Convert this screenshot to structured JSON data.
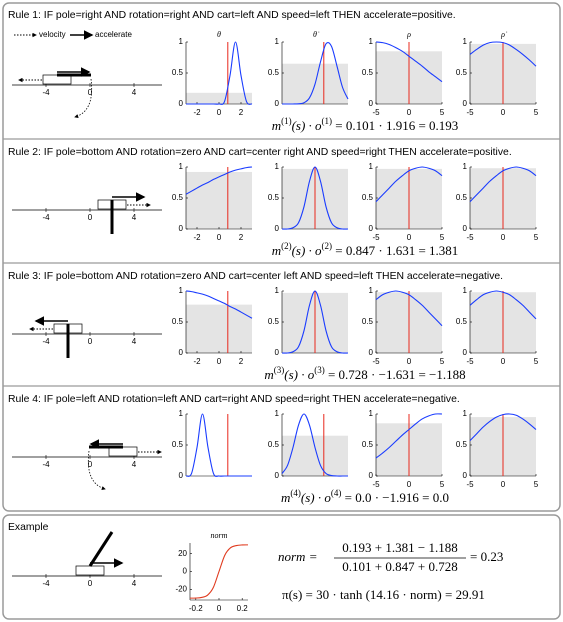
{
  "legend": {
    "velocity": "velocity",
    "accelerate": "accelerate"
  },
  "plot_labels": [
    "θ",
    "θ̇",
    "ρ",
    "ρ̇"
  ],
  "cart_ticks": [
    -4,
    0,
    4
  ],
  "rules": [
    {
      "title": "Rule 1: IF pole=right AND rotation=right AND cart=left AND speed=left THEN accelerate=positive.",
      "formula": [
        "m",
        "(1)",
        "(s) · o",
        "(1)",
        " = 0.101 · 1.916 = 0.193"
      ],
      "plots": [
        {
          "xlim": [
            -3,
            3
          ],
          "xticks": [
            -2,
            0,
            2
          ],
          "ylim": [
            0,
            1
          ],
          "yticks": [
            0,
            0.5,
            1
          ],
          "membership": 0.18,
          "state": 0.8,
          "x": [
            -3,
            -2.5,
            -2,
            -1.5,
            -1,
            -0.5,
            0,
            0.5,
            1,
            1.5,
            2,
            2.5,
            3
          ],
          "y": [
            0,
            0,
            0,
            0,
            0,
            0,
            0,
            0.04,
            0.46,
            1,
            0.46,
            0.04,
            0
          ]
        },
        {
          "xlim": [
            -3,
            3
          ],
          "ylim": [
            0,
            1
          ],
          "yticks": [
            0,
            0.5,
            1
          ],
          "membership": 0.65,
          "state": 0.8,
          "x": [
            -3,
            -2.5,
            -2,
            -1.5,
            -1,
            -0.5,
            0,
            0.5,
            1,
            1.5,
            2,
            2.5,
            3
          ],
          "y": [
            0,
            0,
            0,
            0.003,
            0.02,
            0.1,
            0.32,
            0.68,
            0.97,
            0.93,
            0.61,
            0.27,
            0.08
          ]
        },
        {
          "xlim": [
            -5,
            5
          ],
          "xticks": [
            -5,
            0,
            5
          ],
          "ylim": [
            0,
            1
          ],
          "yticks": [
            0,
            0.5,
            1
          ],
          "membership": 0.85,
          "state": 0,
          "x": [
            -5,
            -4,
            -3,
            -2,
            -1,
            0,
            1,
            2,
            3,
            4,
            5
          ],
          "y": [
            1,
            0.99,
            0.96,
            0.91,
            0.85,
            0.77,
            0.69,
            0.61,
            0.52,
            0.44,
            0.36
          ]
        },
        {
          "xlim": [
            -5,
            5
          ],
          "xticks": [
            -5,
            0,
            5
          ],
          "ylim": [
            0,
            1
          ],
          "yticks": [
            0,
            0.5,
            1
          ],
          "membership": 0.97,
          "state": 0,
          "x": [
            -5,
            -4,
            -3,
            -2,
            -1,
            0,
            1,
            2,
            3,
            4,
            5
          ],
          "y": [
            0.8,
            0.88,
            0.95,
            0.99,
            1,
            0.99,
            0.95,
            0.88,
            0.8,
            0.71,
            0.61
          ]
        }
      ]
    },
    {
      "title": "Rule 2: IF pole=bottom AND rotation=zero AND cart=center right AND speed=right THEN accelerate=positive.",
      "formula": [
        "m",
        "(2)",
        "(s) · o",
        "(2)",
        " = 0.847 · 1.631 = 1.381"
      ],
      "plots": [
        {
          "xlim": [
            -3,
            3
          ],
          "xticks": [
            -2,
            0,
            2
          ],
          "ylim": [
            0,
            1
          ],
          "yticks": [
            0,
            0.5,
            1
          ],
          "membership": 0.92,
          "state": 0.8,
          "x": [
            -3,
            -2.5,
            -2,
            -1.5,
            -1,
            -0.5,
            0,
            0.5,
            1,
            1.5,
            2,
            2.5,
            3
          ],
          "y": [
            0.56,
            0.61,
            0.66,
            0.71,
            0.75,
            0.8,
            0.84,
            0.88,
            0.92,
            0.95,
            0.97,
            0.99,
            1
          ]
        },
        {
          "xlim": [
            -3,
            3
          ],
          "ylim": [
            0,
            1
          ],
          "yticks": [
            0,
            0.5,
            1
          ],
          "membership": 0.97,
          "state": 0,
          "x": [
            -3,
            -2.5,
            -2,
            -1.5,
            -1,
            -0.5,
            0,
            0.5,
            1,
            1.5,
            2,
            2.5,
            3
          ],
          "y": [
            0,
            0,
            0.02,
            0.1,
            0.36,
            0.77,
            1,
            0.77,
            0.36,
            0.1,
            0.02,
            0,
            0
          ]
        },
        {
          "xlim": [
            -5,
            5
          ],
          "xticks": [
            -5,
            0,
            5
          ],
          "ylim": [
            0,
            1
          ],
          "yticks": [
            0,
            0.5,
            1
          ],
          "membership": 0.97,
          "state": 0,
          "x": [
            -5,
            -4,
            -3,
            -2,
            -1,
            0,
            1,
            2,
            3,
            4,
            5
          ],
          "y": [
            0.44,
            0.55,
            0.66,
            0.77,
            0.86,
            0.94,
            0.98,
            1,
            0.98,
            0.94,
            0.86
          ]
        },
        {
          "xlim": [
            -5,
            5
          ],
          "xticks": [
            -5,
            0,
            5
          ],
          "ylim": [
            0,
            1
          ],
          "yticks": [
            0,
            0.5,
            1
          ],
          "membership": 0.98,
          "state": 0,
          "x": [
            -5,
            -4,
            -3,
            -2,
            -1,
            0,
            1,
            2,
            3,
            4,
            5
          ],
          "y": [
            0.44,
            0.55,
            0.66,
            0.77,
            0.86,
            0.94,
            0.98,
            1,
            0.98,
            0.94,
            0.86
          ]
        }
      ]
    },
    {
      "title": "Rule 3: IF pole=bottom AND rotation=zero AND cart=center left AND speed=left THEN accelerate=negative.",
      "formula": [
        "m",
        "(3)",
        "(s) · o",
        "(3)",
        " = 0.728 · −1.631 = −1.188"
      ],
      "plots": [
        {
          "xlim": [
            -3,
            3
          ],
          "xticks": [
            -2,
            0,
            2
          ],
          "ylim": [
            0,
            1
          ],
          "yticks": [
            0,
            0.5,
            1
          ],
          "membership": 0.78,
          "state": 0.8,
          "x": [
            -3,
            -2.5,
            -2,
            -1.5,
            -1,
            -0.5,
            0,
            0.5,
            1,
            1.5,
            2,
            2.5,
            3
          ],
          "y": [
            1,
            0.99,
            0.97,
            0.95,
            0.92,
            0.88,
            0.84,
            0.8,
            0.75,
            0.71,
            0.66,
            0.61,
            0.56
          ]
        },
        {
          "xlim": [
            -3,
            3
          ],
          "ylim": [
            0,
            1
          ],
          "yticks": [
            0,
            0.5,
            1
          ],
          "membership": 0.97,
          "state": 0,
          "x": [
            -3,
            -2.5,
            -2,
            -1.5,
            -1,
            -0.5,
            0,
            0.5,
            1,
            1.5,
            2,
            2.5,
            3
          ],
          "y": [
            0,
            0,
            0.02,
            0.1,
            0.36,
            0.77,
            1,
            0.77,
            0.36,
            0.1,
            0.02,
            0,
            0
          ]
        },
        {
          "xlim": [
            -5,
            5
          ],
          "xticks": [
            -5,
            0,
            5
          ],
          "ylim": [
            0,
            1
          ],
          "yticks": [
            0,
            0.5,
            1
          ],
          "membership": 0.98,
          "state": 0,
          "x": [
            -5,
            -4,
            -3,
            -2,
            -1,
            0,
            1,
            2,
            3,
            4,
            5
          ],
          "y": [
            0.86,
            0.94,
            0.98,
            1,
            0.98,
            0.94,
            0.86,
            0.77,
            0.66,
            0.55,
            0.44
          ]
        },
        {
          "xlim": [
            -5,
            5
          ],
          "xticks": [
            -5,
            0,
            5
          ],
          "ylim": [
            0,
            1
          ],
          "yticks": [
            0,
            0.5,
            1
          ],
          "membership": 0.98,
          "state": 0,
          "x": [
            -5,
            -4,
            -3,
            -2,
            -1,
            0,
            1,
            2,
            3,
            4,
            5
          ],
          "y": [
            0.77,
            0.86,
            0.94,
            0.98,
            1,
            0.98,
            0.94,
            0.86,
            0.77,
            0.66,
            0.55
          ]
        }
      ]
    },
    {
      "title": "Rule 4: IF pole=left AND rotation=left AND cart=right AND speed=right THEN accelerate=negative.",
      "formula": [
        "m",
        "(4)",
        "(s) · o",
        "(4)",
        " = 0.0 · −1.916 = 0.0"
      ],
      "plots": [
        {
          "xlim": [
            -3,
            3
          ],
          "ylim": [
            0,
            1
          ],
          "yticks": [
            0,
            0.5,
            1
          ],
          "membership": 0,
          "state": 0.8,
          "x": [
            -3,
            -2.5,
            -2,
            -1.5,
            -1,
            -0.5,
            0,
            0.5,
            1,
            1.5,
            2,
            2.5,
            3
          ],
          "y": [
            0,
            0.04,
            0.46,
            1,
            0.46,
            0.04,
            0,
            0,
            0,
            0,
            0,
            0,
            0
          ]
        },
        {
          "xlim": [
            -3,
            3
          ],
          "ylim": [
            0,
            1
          ],
          "yticks": [
            0,
            0.5,
            1
          ],
          "membership": 0.65,
          "state": 0.8,
          "x": [
            -3,
            -2.5,
            -2,
            -1.5,
            -1,
            -0.5,
            0,
            0.5,
            1,
            1.5,
            2,
            2.5,
            3
          ],
          "y": [
            0.04,
            0.17,
            0.46,
            0.82,
            1,
            0.82,
            0.46,
            0.17,
            0.04,
            0.007,
            0,
            0,
            0
          ]
        },
        {
          "xlim": [
            -5,
            5
          ],
          "xticks": [
            -5,
            0,
            5
          ],
          "ylim": [
            0,
            1
          ],
          "yticks": [
            0,
            0.5,
            1
          ],
          "membership": 0.85,
          "state": 0,
          "x": [
            -5,
            -4,
            -3,
            -2,
            -1,
            0,
            1,
            2,
            3,
            4,
            5
          ],
          "y": [
            0.29,
            0.37,
            0.46,
            0.56,
            0.66,
            0.75,
            0.84,
            0.92,
            0.97,
            1,
            1
          ]
        },
        {
          "xlim": [
            -5,
            5
          ],
          "xticks": [
            -5,
            0,
            5
          ],
          "ylim": [
            0,
            1
          ],
          "yticks": [
            0,
            0.5,
            1
          ],
          "membership": 0.95,
          "state": 0,
          "x": [
            -5,
            -4,
            -3,
            -2,
            -1,
            0,
            1,
            2,
            3,
            4,
            5
          ],
          "y": [
            0.57,
            0.68,
            0.79,
            0.88,
            0.95,
            0.99,
            1,
            0.98,
            0.92,
            0.84,
            0.75
          ]
        }
      ]
    }
  ],
  "example": {
    "title": "Example",
    "plot": {
      "label": "norm",
      "xlim": [
        -0.25,
        0.25
      ],
      "xticks": [
        -0.2,
        0,
        0.2
      ],
      "ylim": [
        -32,
        32
      ],
      "yticks": [
        -20,
        0,
        20
      ],
      "x": [
        -0.25,
        -0.2,
        -0.15,
        -0.1,
        -0.05,
        0,
        0.05,
        0.1,
        0.15,
        0.2,
        0.25
      ],
      "y": [
        -29.9,
        -29.8,
        -29.1,
        -26.7,
        -18.3,
        0,
        18.3,
        26.7,
        29.1,
        29.8,
        29.9
      ]
    },
    "norm_lhs": "norm =",
    "norm_numerator": "0.193 + 1.381 − 1.188",
    "norm_denominator": "0.101 + 0.847 + 0.728",
    "norm_rhs": "= 0.23",
    "policy": "π(s) = 30 · tanh (14.16 · norm) = 29.91"
  }
}
